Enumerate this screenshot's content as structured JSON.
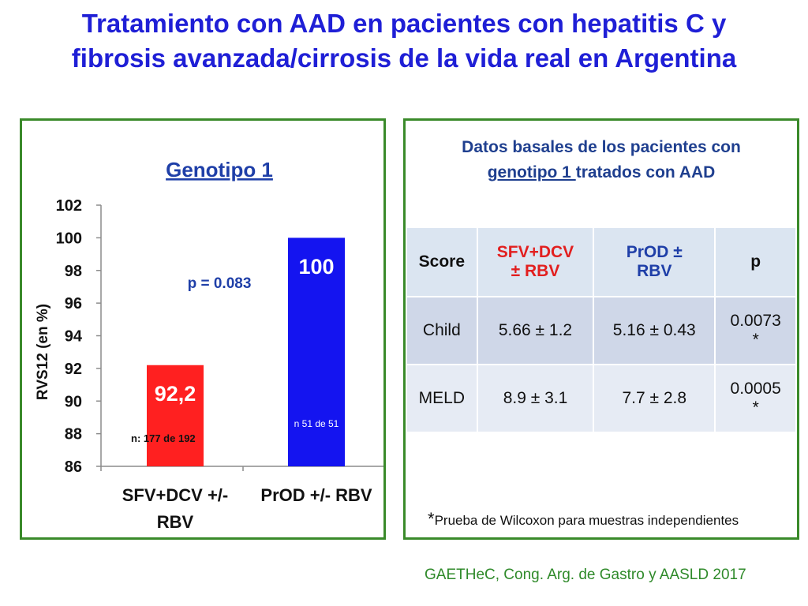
{
  "title": {
    "line1": "Tratamiento con AAD en pacientes con hepatitis C y",
    "line2": "fibrosis avanzada/cirrosis de la vida real en Argentina"
  },
  "chart_data": {
    "type": "bar",
    "title": "Genotipo 1",
    "ylabel": "RVS12 (en %)",
    "xlabel": "",
    "ylim": [
      86,
      102
    ],
    "yticks": [
      "86",
      "88",
      "90",
      "92",
      "94",
      "96",
      "98",
      "100",
      "102"
    ],
    "categories": [
      "SFV+DCV +/- RBV",
      "PrOD +/- RBV"
    ],
    "values": [
      92.2,
      100
    ],
    "value_labels": [
      "92,2",
      "100"
    ],
    "n_labels": [
      "n: 177 de 192",
      "n 51 de 51"
    ],
    "colors": [
      "#ff2020",
      "#1414f0"
    ],
    "annotation": "p = 0.083",
    "grid": false
  },
  "table": {
    "heading_part1": "Datos basales de los pacientes con",
    "heading_underlined": "genotipo 1 ",
    "heading_part2": "tratados con AAD",
    "header": {
      "score": "Score",
      "col1_line1": "SFV+DCV",
      "col1_line2": "± RBV",
      "col2_line1": "PrOD ±",
      "col2_line2": "RBV",
      "p": "p"
    },
    "rows": [
      {
        "score": "Child",
        "col1": "5.66 ± 1.2",
        "col2": "5.16 ± 0.43",
        "p": "0.0073",
        "mark": "*"
      },
      {
        "score": "MELD",
        "col1": "8.9 ± 3.1",
        "col2": "7.7 ± 2.8",
        "p": "0.0005",
        "mark": "*"
      }
    ],
    "footnote_mark": "*",
    "footnote": "Prueba de Wilcoxon para muestras independientes"
  },
  "source": "GAETHeC, Cong. Arg. de Gastro y AASLD 2017",
  "colors": {
    "title": "#1f1fd6",
    "panel_border": "#3a8a2a",
    "table_heading": "#1f3f8f",
    "source": "#2f8a2a"
  }
}
